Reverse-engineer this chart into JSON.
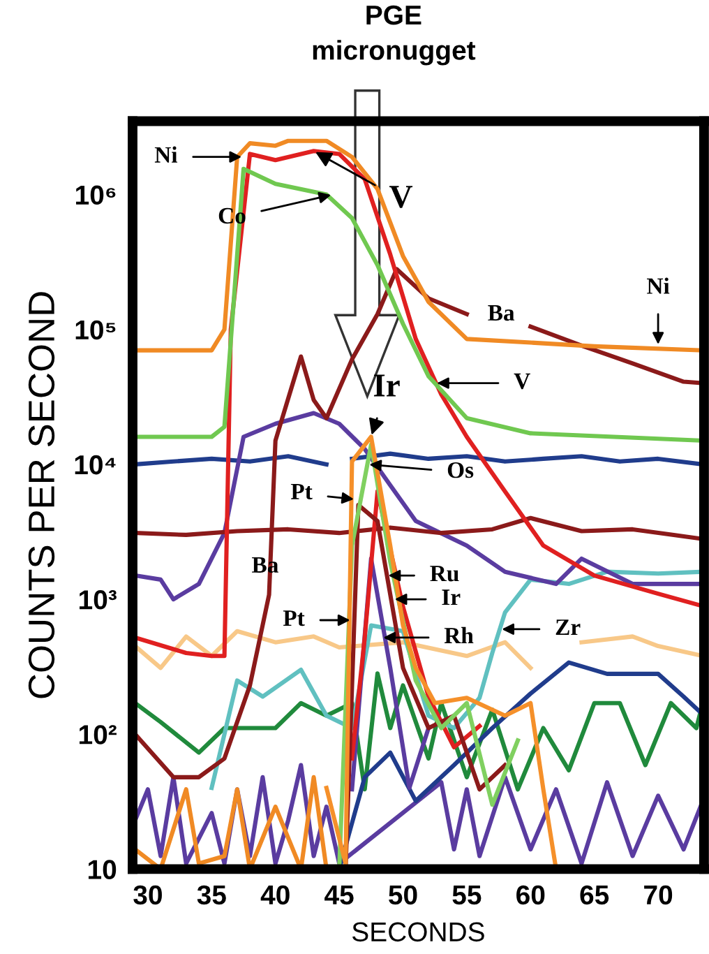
{
  "chart_data": {
    "type": "line",
    "title": "PGE\nmicronugget",
    "xlabel": "SECONDS",
    "ylabel": "COUNTS PER SECOND",
    "log": "y",
    "xlim": [
      28.8,
      73.6
    ],
    "ylim": [
      10,
      3500000
    ],
    "xticks": [
      30,
      35,
      40,
      45,
      50,
      55,
      60,
      65,
      70
    ],
    "yticks": [
      10,
      {
        "value": 100,
        "label": "10²"
      },
      {
        "value": 1000,
        "label": "10³"
      },
      {
        "value": 10000,
        "label": "10⁴"
      },
      {
        "value": 100000,
        "label": "10⁵"
      },
      {
        "value": 1000000,
        "label": "10⁶"
      }
    ],
    "grid": false,
    "marker": "none",
    "line_style": "solid",
    "series": [
      {
        "color": "#f8c888",
        "x": [
          29,
          31,
          33,
          35,
          37,
          40,
          43,
          45,
          50,
          55,
          58,
          60,
          62,
          64,
          68,
          70,
          73.5
        ],
        "values": [
          450,
          310,
          530,
          380,
          580,
          480,
          530,
          440,
          480,
          380,
          480,
          310,
          null,
          480,
          530,
          450,
          380
        ]
      },
      {
        "color": "#208a3c",
        "x": [
          29,
          31,
          34,
          36,
          38,
          40,
          42,
          44,
          46,
          47,
          48,
          49,
          50,
          52,
          53,
          55,
          57,
          59,
          61,
          63,
          65,
          67,
          69,
          71,
          73,
          73.5
        ],
        "values": [
          170,
          123,
          73,
          111,
          111,
          111,
          170,
          137,
          170,
          39,
          282,
          111,
          230,
          66,
          170,
          48,
          152,
          39,
          111,
          54,
          170,
          170,
          59,
          170,
          111,
          170
        ]
      },
      {
        "color": "#5a3ca0",
        "x": [
          29,
          30,
          31,
          32,
          33,
          35,
          36,
          37,
          38,
          39,
          40,
          41,
          42,
          43,
          44,
          45,
          53,
          54,
          55,
          56,
          58,
          60,
          62,
          64,
          66,
          68,
          70,
          72,
          73.5
        ],
        "values": [
          23,
          39,
          12.5,
          48,
          11,
          26,
          11,
          39,
          12.5,
          48,
          11,
          23,
          59,
          12.5,
          29,
          11,
          44,
          14,
          39,
          12.5,
          48,
          14,
          39,
          11,
          44,
          12.5,
          35,
          14,
          32
        ]
      },
      {
        "color": "#f08a24",
        "x": [
          29,
          31,
          33,
          34,
          36,
          37,
          38,
          40,
          42,
          43,
          44
        ],
        "values": [
          14,
          10,
          39,
          11,
          12.5,
          39,
          10,
          29,
          10,
          48,
          10
        ]
      },
      {
        "color": "#203c8c",
        "x": [
          45,
          47,
          49,
          51,
          54,
          57,
          60,
          63,
          66,
          70,
          72,
          73.5
        ],
        "values": [
          10,
          48,
          73,
          32,
          59,
          111,
          200,
          340,
          280,
          280,
          190,
          140
        ]
      },
      {
        "color": "#60c0c0",
        "x": [
          35,
          37,
          39,
          42,
          44,
          46,
          47.5,
          50,
          52,
          54,
          56,
          57,
          58,
          60,
          63,
          66,
          70,
          73.5
        ],
        "values": [
          40,
          250,
          190,
          300,
          137,
          111,
          640,
          580,
          137,
          111,
          186,
          400,
          800,
          1400,
          1300,
          1600,
          1550,
          1600
        ]
      },
      {
        "color": "#203c8c",
        "x": [
          29,
          32,
          35,
          38,
          41,
          44,
          45,
          46,
          49,
          52,
          55,
          58,
          61,
          64,
          67,
          70,
          73.5
        ],
        "values": [
          10000,
          10500,
          11000,
          10500,
          11500,
          10000,
          null,
          11000,
          12000,
          11000,
          11500,
          10500,
          11000,
          11500,
          10500,
          11000,
          10000
        ]
      },
      {
        "color": "#5a3ca0",
        "x": [
          29,
          31,
          32,
          34,
          36,
          37.5,
          40,
          43,
          45,
          47,
          49,
          51,
          55,
          58,
          62,
          64,
          68,
          73.5
        ],
        "values": [
          1500,
          1400,
          1000,
          1300,
          3100,
          16000,
          20000,
          24000,
          20000,
          13000,
          7000,
          3800,
          2500,
          1600,
          1300,
          2000,
          1300,
          1300
        ]
      },
      {
        "color": "#8b1a1a",
        "x": [
          29,
          33,
          37,
          41,
          45,
          49,
          53,
          57,
          60,
          64,
          68,
          73.5
        ],
        "values": [
          3100,
          3000,
          3200,
          3300,
          3100,
          3400,
          3100,
          3300,
          4000,
          3200,
          3300,
          2800
        ]
      },
      {
        "color": "#8b1a1a",
        "x": [
          29,
          32,
          34,
          36,
          38,
          39.5,
          40,
          42,
          43,
          44,
          46,
          48,
          49.5,
          52,
          55,
          56,
          60,
          64,
          68,
          72,
          73.5
        ],
        "values": [
          100,
          48,
          48,
          66,
          230,
          1080,
          15000,
          63000,
          30000,
          22000,
          60000,
          130000,
          280000,
          170000,
          130000,
          null,
          105000,
          76000,
          56000,
          41000,
          40000
        ]
      },
      {
        "color": "#e02020",
        "x": [
          29,
          33,
          35,
          36,
          36.5,
          38,
          40,
          43,
          45,
          47,
          49,
          51,
          53,
          55,
          58,
          61,
          65,
          70,
          73.5
        ],
        "values": [
          520,
          400,
          380,
          380,
          100000,
          2000000,
          1800000,
          2100000,
          2000000,
          1300000,
          360000,
          85000,
          33000,
          16000,
          6300,
          2500,
          1500,
          1100,
          890
        ]
      },
      {
        "color": "#70c850",
        "x": [
          29,
          35,
          36,
          37.5,
          40,
          44,
          46,
          48,
          50,
          52,
          55,
          60,
          73.5
        ],
        "values": [
          16000,
          16000,
          19000,
          1550000,
          1200000,
          1000000,
          670000,
          300000,
          110000,
          45000,
          22000,
          17000,
          15000
        ]
      },
      {
        "color": "#f08a24",
        "x": [
          29,
          35,
          36,
          37,
          38,
          40,
          41,
          44,
          46,
          48,
          50,
          52,
          55,
          60,
          65,
          73.5
        ],
        "values": [
          70000,
          70000,
          100000,
          1900000,
          2400000,
          2300000,
          2500000,
          2500000,
          1900000,
          1100000,
          350000,
          160000,
          85000,
          80000,
          75000,
          70000
        ]
      },
      {
        "color": "#5a3ca0",
        "x": [
          46,
          47.5,
          49,
          50.5,
          52
        ],
        "values": [
          39,
          2000,
          310,
          40,
          111
        ]
      },
      {
        "color": "#e02020",
        "x": [
          46,
          47,
          48,
          50,
          52,
          54,
          56
        ],
        "values": [
          66,
          520,
          6300,
          880,
          190,
          80,
          115
        ]
      },
      {
        "color": "#8b1a1a",
        "x": [
          45.5,
          46.5,
          48,
          50,
          52,
          54,
          56,
          58
        ],
        "values": [
          10,
          5000,
          3800,
          310,
          111,
          137,
          39,
          59
        ]
      },
      {
        "color": "#80d060",
        "x": [
          45,
          46,
          47.5,
          49,
          51,
          53,
          55,
          57,
          59
        ],
        "values": [
          10,
          2500,
          14000,
          1900,
          250,
          111,
          170,
          30,
          90
        ]
      },
      {
        "color": "#f5902a",
        "x": [
          44,
          45.5,
          46,
          47.5,
          49,
          50,
          51,
          52.5,
          55,
          58,
          60,
          61,
          62
        ],
        "values": [
          40,
          11,
          10500,
          16000,
          2500,
          640,
          310,
          170,
          186,
          137,
          170,
          39,
          10
        ]
      }
    ],
    "annotations": [
      {
        "text": "Ni",
        "x": 37.5,
        "y": 1900000
      },
      {
        "text": "V",
        "x": 43,
        "y": 2100000
      },
      {
        "text": "Co",
        "x": 44.5,
        "y": 1000000
      },
      {
        "text": "Ni",
        "x": 70,
        "y": 75000
      },
      "Ba",
      {
        "text": "V",
        "x": 52.5,
        "y": 40000
      },
      {
        "text": "Ir",
        "x": 47.5,
        "y": 16000
      },
      {
        "text": "Os",
        "x": 47.2,
        "y": 10000
      },
      {
        "text": "Pt",
        "x": 46.3,
        "y": 5500
      },
      "Ba",
      {
        "text": "Ru",
        "x": 48.7,
        "y": 1500
      },
      {
        "text": "Ir",
        "x": 49.2,
        "y": 1000
      },
      {
        "text": "Pt",
        "x": 46,
        "y": 700
      },
      {
        "text": "Rh",
        "x": 48.3,
        "y": 520
      },
      {
        "text": "Zr",
        "x": 57.6,
        "y": 600
      }
    ]
  }
}
